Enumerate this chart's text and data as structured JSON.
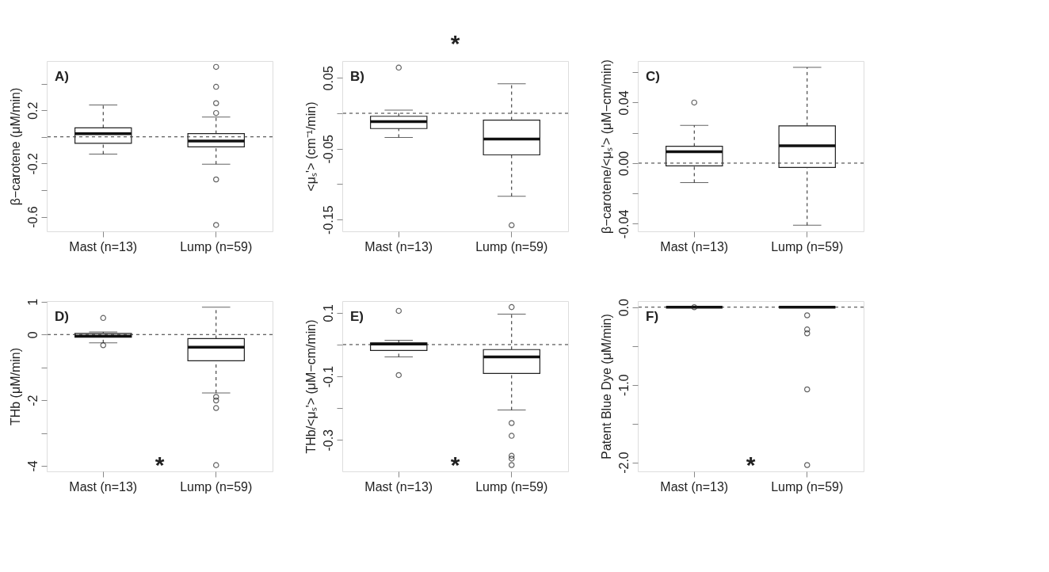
{
  "chart_data": [
    {
      "type": "box",
      "title": "A)",
      "ylabel": "β−carotene (μM/min)",
      "categories": [
        "Mast (n=13)",
        "Lump (n=59)"
      ],
      "boxes": [
        {
          "low": -0.13,
          "q1": -0.048,
          "median": 0.024,
          "q3": 0.068,
          "high": 0.239
        },
        {
          "low": -0.205,
          "q1": -0.075,
          "median": -0.032,
          "q3": 0.024,
          "high": 0.149,
          "outliers": [
            0.526,
            0.376,
            0.253,
            0.179,
            -0.32,
            -0.662
          ]
        }
      ],
      "ylim": [
        -0.71,
        0.57
      ],
      "yticks": [
        {
          "value": -0.6,
          "label": "-0.6"
        },
        {
          "value": -0.4,
          "label": null
        },
        {
          "value": -0.2,
          "label": "-0.2"
        },
        {
          "value": 0,
          "label": null
        },
        {
          "value": 0.2,
          "label": "0.2"
        },
        {
          "value": 0.4,
          "label": null
        }
      ],
      "ref_lines": [
        {
          "axis": "y",
          "value": 0,
          "line_style": "dashed"
        }
      ]
    },
    {
      "type": "box",
      "title": "B)",
      "ylabel": "<μₛ'> (cm⁻¹/min)",
      "categories": [
        "Mast (n=13)",
        "Lump (n=59)"
      ],
      "boxes": [
        {
          "low": -0.034,
          "q1": -0.0215,
          "median": -0.0116,
          "q3": -0.0042,
          "high": 0.0045,
          "outliers": [
            0.0645
          ]
        },
        {
          "low": -0.117,
          "q1": -0.0587,
          "median": -0.0363,
          "q3": -0.0096,
          "high": 0.0417,
          "outliers": [
            -0.158
          ]
        }
      ],
      "ylim": [
        -0.1666,
        0.0738
      ],
      "yticks": [
        {
          "value": -0.15,
          "label": "-0.15"
        },
        {
          "value": -0.1,
          "label": null
        },
        {
          "value": -0.05,
          "label": "-0.05"
        },
        {
          "value": 0,
          "label": null
        },
        {
          "value": 0.05,
          "label": "0.05"
        }
      ],
      "ref_lines": [
        {
          "axis": "y",
          "value": 0,
          "line_style": "dashed"
        }
      ],
      "annotations": [
        "*"
      ]
    },
    {
      "type": "box",
      "title": "C)",
      "ylabel": "β−carotene/<μₛ'> (μM−cm/min)",
      "categories": [
        "Mast (n=13)",
        "Lump (n=59)"
      ],
      "boxes": [
        {
          "low": -0.0128,
          "q1": -0.0018,
          "median": 0.0075,
          "q3": 0.0111,
          "high": 0.0249,
          "outliers": [
            0.04
          ]
        },
        {
          "low": -0.041,
          "q1": -0.0029,
          "median": 0.0114,
          "q3": 0.0246,
          "high": 0.0632
        }
      ],
      "ylim": [
        -0.045,
        0.0674
      ],
      "yticks": [
        {
          "value": -0.04,
          "label": "-0.04"
        },
        {
          "value": -0.02,
          "label": null
        },
        {
          "value": 0,
          "label": "0.00"
        },
        {
          "value": 0.02,
          "label": null
        },
        {
          "value": 0.04,
          "label": "0.04"
        },
        {
          "value": 0.06,
          "label": null
        }
      ],
      "ref_lines": [
        {
          "axis": "y",
          "value": 0,
          "line_style": "dashed"
        }
      ]
    },
    {
      "type": "box",
      "title": "D)",
      "ylabel": "THb (μM/min)",
      "categories": [
        "Mast (n=13)",
        "Lump (n=59)"
      ],
      "boxes": [
        {
          "low": -0.256,
          "q1": -0.083,
          "median": -0.048,
          "q3": 0.035,
          "high": 0.076,
          "outliers": [
            0.505,
            -0.325
          ]
        },
        {
          "low": -1.78,
          "q1": -0.8,
          "median": -0.388,
          "q3": -0.125,
          "high": 0.83,
          "outliers": [
            -1.9,
            -2.01,
            -2.24,
            -3.98
          ]
        }
      ],
      "ylim": [
        -4.17,
        1.02
      ],
      "yticks": [
        {
          "value": -4,
          "label": "-4"
        },
        {
          "value": -3,
          "label": null
        },
        {
          "value": -2,
          "label": "-2"
        },
        {
          "value": -1,
          "label": null
        },
        0,
        1
      ],
      "ref_lines": [
        {
          "axis": "y",
          "value": 0,
          "line_style": "dashed"
        }
      ],
      "annotations": [
        "*"
      ]
    },
    {
      "type": "box",
      "title": "E)",
      "ylabel": "THb/<μₛ'> (μM−cm/min)",
      "categories": [
        "Mast (n=13)",
        "Lump (n=59)"
      ],
      "boxes": [
        {
          "low": -0.0386,
          "q1": -0.0186,
          "median": 0.002,
          "q3": 0.005,
          "high": 0.0136,
          "outliers": [
            0.106,
            -0.096
          ]
        },
        {
          "low": -0.206,
          "q1": -0.0907,
          "median": -0.039,
          "q3": -0.0157,
          "high": 0.0957,
          "outliers": [
            0.118,
            -0.247,
            -0.287,
            -0.35,
            -0.359,
            -0.379
          ]
        }
      ],
      "ylim": [
        -0.399,
        0.137
      ],
      "yticks": [
        {
          "value": -0.3,
          "label": "-0.3"
        },
        {
          "value": -0.2,
          "label": null
        },
        {
          "value": -0.1,
          "label": "-0.1"
        },
        {
          "value": 0,
          "label": null
        },
        {
          "value": 0.1,
          "label": "0.1"
        }
      ],
      "ref_lines": [
        {
          "axis": "y",
          "value": 0,
          "line_style": "dashed"
        }
      ],
      "annotations": [
        "*"
      ]
    },
    {
      "type": "box",
      "title": "F)",
      "ylabel": "Patent Blue Dye (μM/min)",
      "categories": [
        "Mast (n=13)",
        "Lump (n=59)"
      ],
      "boxes": [
        {
          "low": 0,
          "q1": 0,
          "median": 0,
          "q3": 0,
          "high": 0,
          "outliers": [
            0
          ]
        },
        {
          "low": 0,
          "q1": 0,
          "median": 0,
          "q3": 0,
          "high": 0,
          "outliers": [
            -0.105,
            -0.287,
            -0.337,
            -1.06,
            -2.035
          ]
        }
      ],
      "ylim": [
        -2.117,
        0.079
      ],
      "yticks": [
        {
          "value": -2,
          "label": "-2.0"
        },
        {
          "value": -1.5,
          "label": null
        },
        {
          "value": -1,
          "label": "-1.0"
        },
        {
          "value": -0.5,
          "label": null
        },
        {
          "value": 0,
          "label": "0.0"
        }
      ],
      "ref_lines": [
        {
          "axis": "y",
          "value": 0,
          "line_style": "dashed"
        }
      ],
      "annotations": [
        "*"
      ]
    }
  ]
}
